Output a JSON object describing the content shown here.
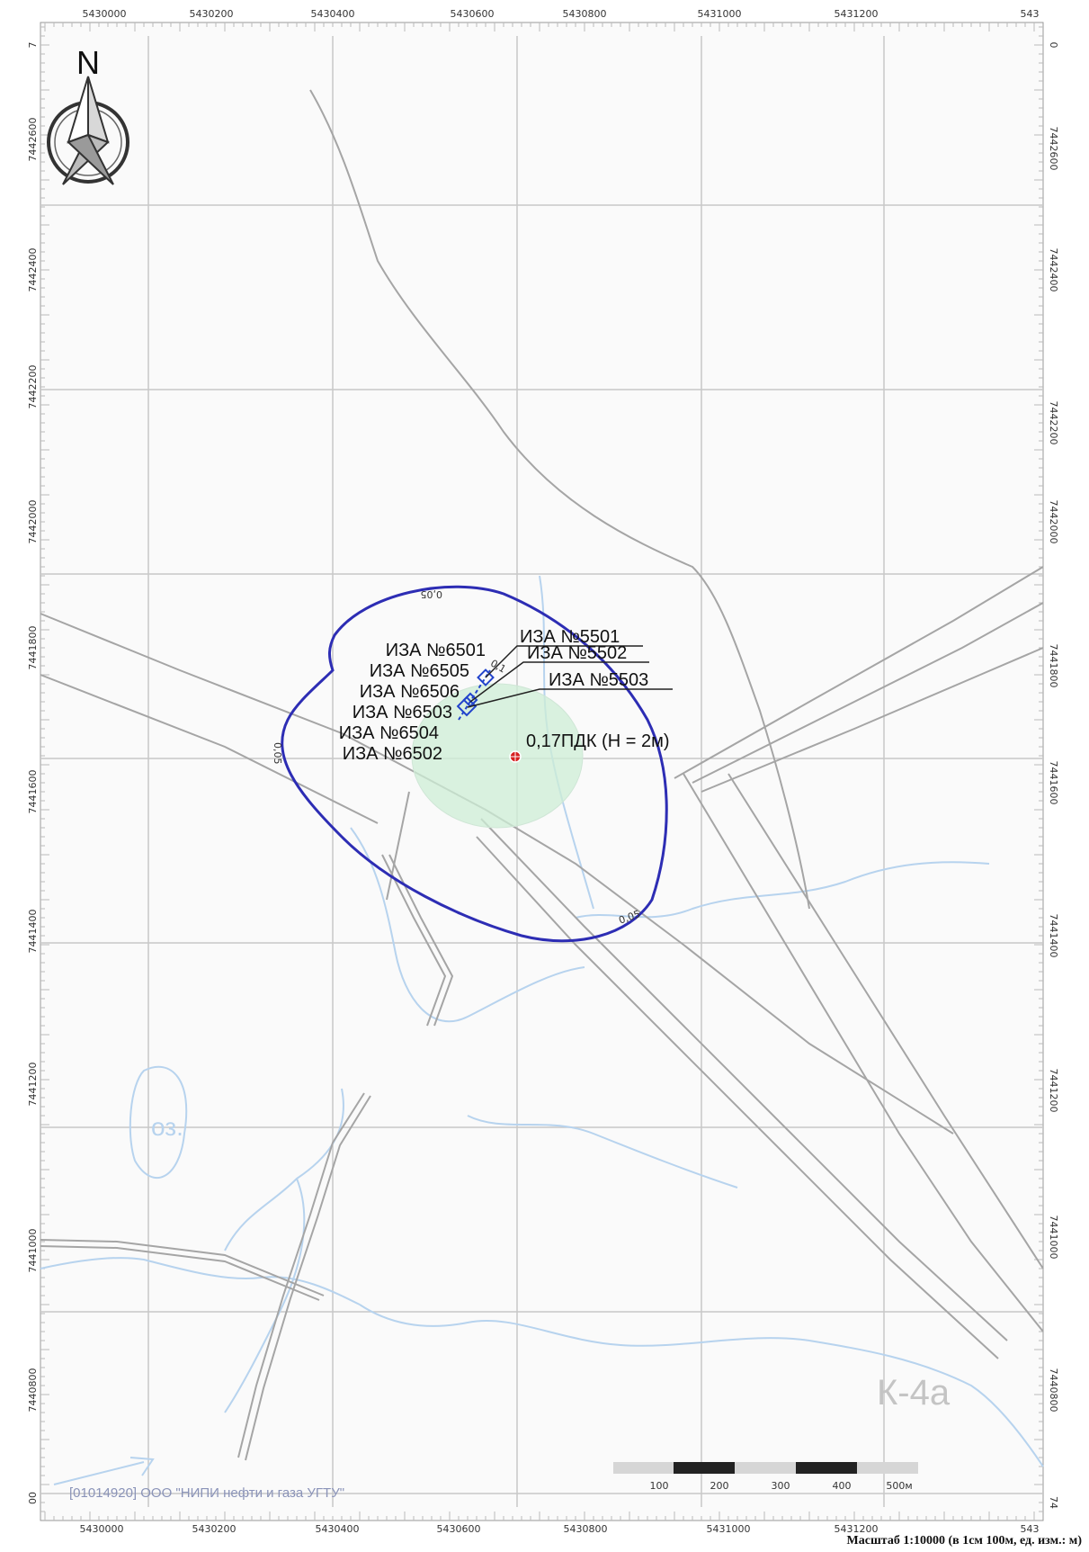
{
  "axes": {
    "x_ticks_top": [
      "5430000",
      "5430200",
      "5430400",
      "5430600",
      "5430800",
      "5431000",
      "5431200",
      "543"
    ],
    "x_ticks_bottom": [
      "5430000",
      "5430200",
      "5430400",
      "5430600",
      "5430800",
      "5431000",
      "5431200",
      "543"
    ],
    "y_ticks_left": [
      "7442600",
      "7442400",
      "7442200",
      "7442000",
      "7441800",
      "7441600",
      "7441400",
      "7441200",
      "7441000",
      "7440800"
    ],
    "y_ticks_right": [
      "7442600",
      "7442400",
      "7442200",
      "7442000",
      "7441800",
      "7441600",
      "7441400",
      "7441200",
      "7441000",
      "7440800"
    ],
    "corner_left_top": "7",
    "corner_right_top": "0",
    "corner_left_bottom": "00",
    "corner_right_bottom": "74"
  },
  "north_arrow": {
    "letter": "N"
  },
  "labels_left": [
    "ИЗА №6501",
    "ИЗА №6505",
    "ИЗА №6506",
    "ИЗА №6503",
    "ИЗА №6504",
    "ИЗА №6502"
  ],
  "labels_right": [
    "ИЗА №5501",
    "ИЗА №5502",
    "ИЗА №5503"
  ],
  "max_point_label": "0,17ПДК (H = 2м)",
  "isolines": [
    "0,05",
    "0,05",
    "0,05",
    "0,1"
  ],
  "water_label": "оз.",
  "area_label": "К-4а",
  "credit": "[01014920] ООО \"НИПИ нефти и газа УГТУ\"",
  "scale_bar": {
    "ticks": [
      "100",
      "200",
      "300",
      "400",
      "500м"
    ]
  },
  "scale_caption": "Масштаб 1:10000 (в 1см 100м, ед. изм.: м)",
  "colors": {
    "isoline": "#2d2db4",
    "zone_fill": "#cdeed6",
    "water": "#b7d3ee",
    "road": "#9a9a9a",
    "grid": "#c8c8c8",
    "source": "#2244cc",
    "max_point": "#d62020"
  }
}
